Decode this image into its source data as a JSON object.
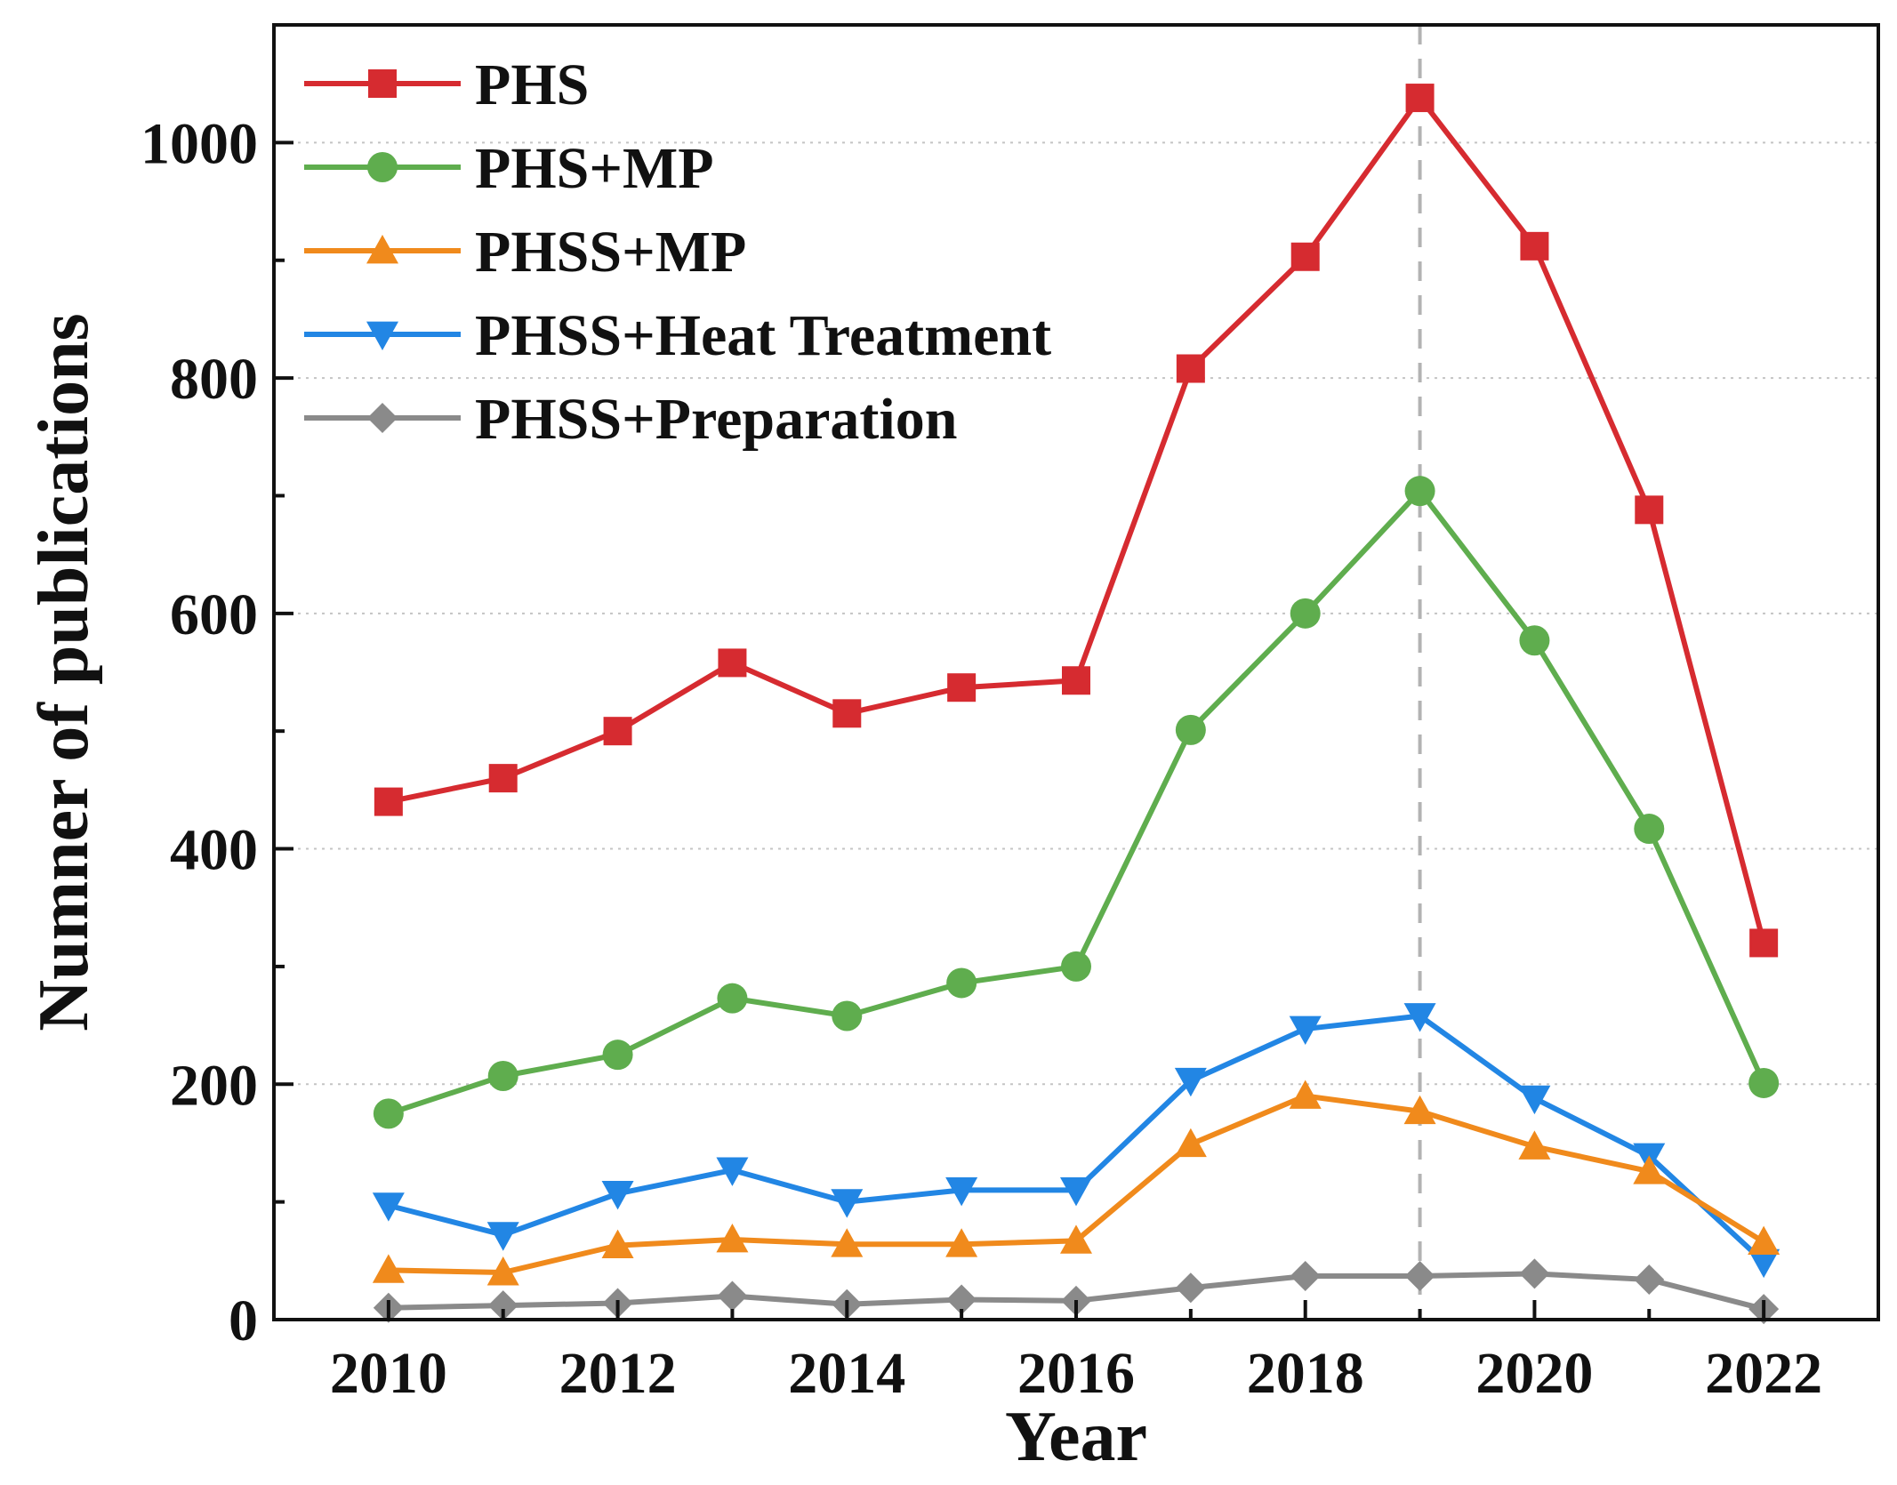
{
  "chart_data": {
    "type": "line",
    "title": "",
    "xlabel": "Year",
    "ylabel": "Numner of publications",
    "x": [
      2010,
      2011,
      2012,
      2013,
      2014,
      2015,
      2016,
      2017,
      2018,
      2019,
      2020,
      2021,
      2022
    ],
    "xlim": [
      2009,
      2023
    ],
    "ylim": [
      0,
      1100
    ],
    "xticks": [
      2010,
      2012,
      2014,
      2016,
      2018,
      2020,
      2022
    ],
    "yticks": [
      0,
      200,
      400,
      600,
      800,
      1000
    ],
    "grid": true,
    "reference_line_x": 2019,
    "legend_position": "top-left",
    "series": [
      {
        "name": "PHS",
        "color": "#d62b30",
        "marker": "square",
        "values": [
          440,
          460,
          500,
          558,
          515,
          537,
          543,
          808,
          903,
          1038,
          912,
          688,
          320
        ]
      },
      {
        "name": "PHS+MP",
        "color": "#5fad4e",
        "marker": "circle",
        "values": [
          175,
          207,
          225,
          273,
          258,
          286,
          300,
          501,
          600,
          704,
          577,
          417,
          201
        ]
      },
      {
        "name": "PHSS+MP",
        "color": "#f08a1c",
        "marker": "triangle-up",
        "values": [
          42,
          40,
          63,
          68,
          64,
          64,
          67,
          149,
          190,
          177,
          147,
          126,
          66
        ]
      },
      {
        "name": "PHSS+Heat Treatment",
        "color": "#2286e4",
        "marker": "triangle-down",
        "values": [
          97,
          72,
          107,
          127,
          100,
          110,
          110,
          203,
          247,
          258,
          188,
          139,
          49
        ]
      },
      {
        "name": "PHSS+Preparation",
        "color": "#8a8a8a",
        "marker": "diamond",
        "values": [
          10,
          12,
          14,
          20,
          13,
          17,
          16,
          27,
          37,
          37,
          39,
          34,
          9
        ]
      }
    ]
  }
}
